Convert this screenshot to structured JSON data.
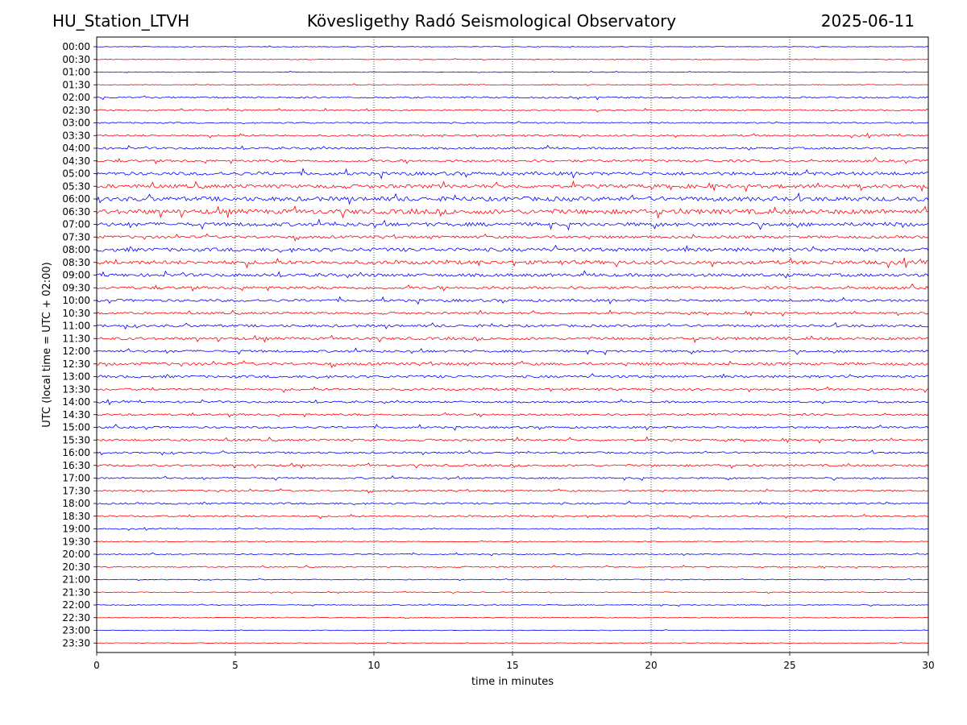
{
  "header": {
    "station": "HU_Station_LTVH",
    "observatory": "Kövesligethy Radó Seismological Observatory",
    "date": "2025-06-11"
  },
  "chart_data": {
    "type": "line",
    "chart_kind": "helicorder",
    "xlabel": "time in minutes",
    "ylabel": "UTC (local time = UTC + 02:00)",
    "xlim": [
      0,
      30
    ],
    "x_ticks": [
      0,
      5,
      10,
      15,
      20,
      25,
      30
    ],
    "grid": "vertical dotted lines at 5-minute ticks",
    "trace_colors": [
      "#0000ff",
      "#ff0000"
    ],
    "rows": [
      {
        "label": "00:00",
        "amp": 0.4
      },
      {
        "label": "00:30",
        "amp": 0.4
      },
      {
        "label": "01:00",
        "amp": 0.4
      },
      {
        "label": "01:30",
        "amp": 0.5
      },
      {
        "label": "02:00",
        "amp": 1.0
      },
      {
        "label": "02:30",
        "amp": 0.8
      },
      {
        "label": "03:00",
        "amp": 0.8
      },
      {
        "label": "03:30",
        "amp": 1.0
      },
      {
        "label": "04:00",
        "amp": 1.2
      },
      {
        "label": "04:30",
        "amp": 1.4
      },
      {
        "label": "05:00",
        "amp": 2.0
      },
      {
        "label": "05:30",
        "amp": 2.2
      },
      {
        "label": "06:00",
        "amp": 2.6
      },
      {
        "label": "06:30",
        "amp": 2.8
      },
      {
        "label": "07:00",
        "amp": 2.2
      },
      {
        "label": "07:30",
        "amp": 1.6
      },
      {
        "label": "08:00",
        "amp": 2.2
      },
      {
        "label": "08:30",
        "amp": 2.2
      },
      {
        "label": "09:00",
        "amp": 1.8
      },
      {
        "label": "09:30",
        "amp": 1.6
      },
      {
        "label": "10:00",
        "amp": 1.5
      },
      {
        "label": "10:30",
        "amp": 1.3
      },
      {
        "label": "11:00",
        "amp": 1.5
      },
      {
        "label": "11:30",
        "amp": 1.6
      },
      {
        "label": "12:00",
        "amp": 1.4
      },
      {
        "label": "12:30",
        "amp": 1.6
      },
      {
        "label": "13:00",
        "amp": 1.5
      },
      {
        "label": "13:30",
        "amp": 1.3
      },
      {
        "label": "14:00",
        "amp": 1.1
      },
      {
        "label": "14:30",
        "amp": 1.2
      },
      {
        "label": "15:00",
        "amp": 1.2
      },
      {
        "label": "15:30",
        "amp": 1.3
      },
      {
        "label": "16:00",
        "amp": 1.1
      },
      {
        "label": "16:30",
        "amp": 1.2
      },
      {
        "label": "17:00",
        "amp": 1.0
      },
      {
        "label": "17:30",
        "amp": 1.0
      },
      {
        "label": "18:00",
        "amp": 1.1
      },
      {
        "label": "18:30",
        "amp": 1.0
      },
      {
        "label": "19:00",
        "amp": 0.6
      },
      {
        "label": "19:30",
        "amp": 0.5
      },
      {
        "label": "20:00",
        "amp": 0.6
      },
      {
        "label": "20:30",
        "amp": 0.7
      },
      {
        "label": "21:00",
        "amp": 0.5
      },
      {
        "label": "21:30",
        "amp": 0.5
      },
      {
        "label": "22:00",
        "amp": 0.5
      },
      {
        "label": "22:30",
        "amp": 0.4
      },
      {
        "label": "23:00",
        "amp": 0.4
      },
      {
        "label": "23:30",
        "amp": 0.4
      }
    ]
  }
}
